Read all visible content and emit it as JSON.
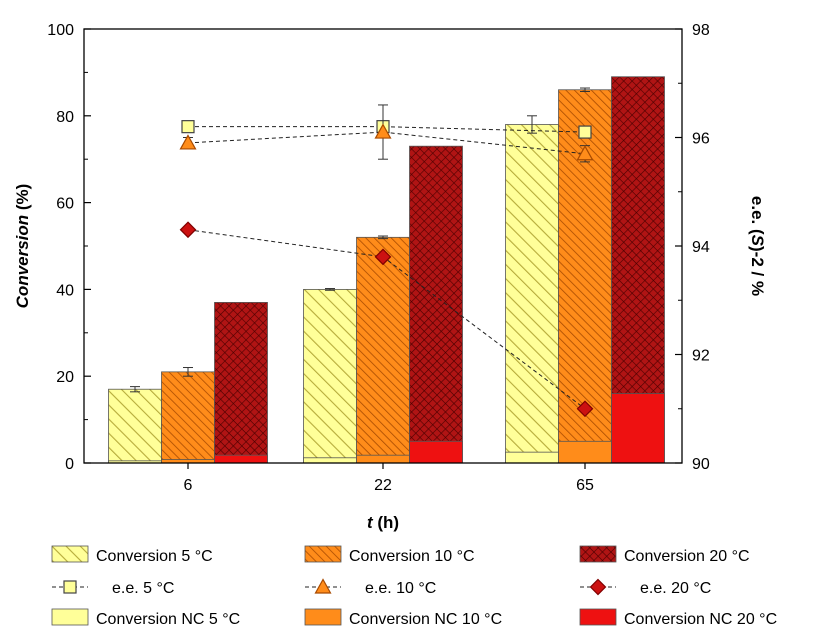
{
  "chart_data": {
    "type": "bar",
    "categories": [
      "6",
      "22",
      "65"
    ],
    "xlabel": {
      "italic": "t",
      "rest": " (h)"
    },
    "ylabel": {
      "italic": "Conversion",
      "rest": " (%)"
    },
    "y2label": {
      "pre": "e.e. (",
      "italic": "S",
      "post": ")-2 / %"
    },
    "ylim": [
      0,
      100
    ],
    "y2lim": [
      90,
      98
    ],
    "yticks": [
      "0",
      "20",
      "40",
      "60",
      "80",
      "100"
    ],
    "y2ticks": [
      "90",
      "92",
      "94",
      "96",
      "98"
    ],
    "bar_series": [
      {
        "name": "Conversion 5 °C",
        "values": [
          17,
          40,
          78
        ],
        "errors": [
          0.6,
          0.2,
          2
        ],
        "fill": "#ffff99",
        "pattern": "hatch-light"
      },
      {
        "name": "Conversion 10 °C",
        "values": [
          21,
          52,
          86
        ],
        "errors": [
          1,
          0.3,
          0.4
        ],
        "fill": "#ff8c1a",
        "pattern": "hatch-dense"
      },
      {
        "name": "Conversion 20 °C",
        "values": [
          37,
          73,
          89
        ],
        "errors": [
          0,
          0,
          0
        ],
        "fill": "#b01414",
        "pattern": "crosshatch"
      }
    ],
    "nc_series": [
      {
        "name": "Conversion NC 5 °C",
        "values": [
          0.5,
          1.2,
          2.5
        ],
        "fill": "#ffff99"
      },
      {
        "name": "Conversion NC 10 °C",
        "values": [
          0.8,
          1.8,
          5
        ],
        "fill": "#ff8c1a"
      },
      {
        "name": "Conversion NC 20 °C",
        "values": [
          1.8,
          5,
          16
        ],
        "fill": "#ee1111"
      }
    ],
    "ee_series": [
      {
        "name": "e.e. 5 °C",
        "values": [
          96.2,
          96.2,
          96.1
        ],
        "errors": [
          0,
          0.1,
          0
        ],
        "marker": "square",
        "fill": "#ffff99"
      },
      {
        "name": "e.e. 10 °C",
        "values": [
          95.9,
          96.1,
          95.7
        ],
        "errors": [
          0.1,
          0.5,
          0.15
        ],
        "marker": "triangle",
        "fill": "#ff8c1a"
      },
      {
        "name": "e.e. 20 °C",
        "values": [
          94.3,
          93.8,
          91
        ],
        "errors": [
          0,
          0,
          0
        ],
        "marker": "diamond",
        "fill": "#cc1111"
      }
    ],
    "legend_position": "bottom",
    "grid": false
  }
}
